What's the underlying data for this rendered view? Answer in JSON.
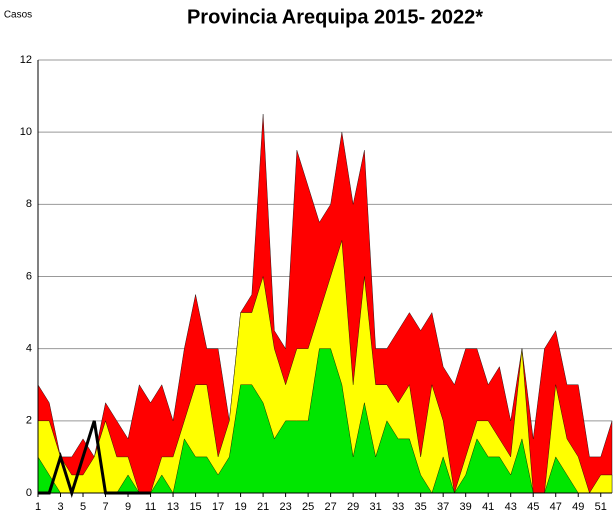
{
  "chart_data": {
    "type": "area",
    "title": "Provincia Arequipa  2015- 2022*",
    "y_label": "Casos",
    "x": [
      1,
      2,
      3,
      4,
      5,
      6,
      7,
      8,
      9,
      10,
      11,
      12,
      13,
      14,
      15,
      16,
      17,
      18,
      19,
      20,
      21,
      22,
      23,
      24,
      25,
      26,
      27,
      28,
      29,
      30,
      31,
      32,
      33,
      34,
      35,
      36,
      37,
      38,
      39,
      40,
      41,
      42,
      43,
      44,
      45,
      46,
      47,
      48,
      49,
      50,
      51,
      52
    ],
    "xlim": [
      1,
      52
    ],
    "xticks": [
      1,
      3,
      5,
      7,
      9,
      11,
      13,
      15,
      17,
      19,
      21,
      23,
      25,
      27,
      29,
      31,
      33,
      35,
      37,
      39,
      41,
      43,
      45,
      47,
      49,
      51
    ],
    "ylim": [
      0,
      12
    ],
    "yticks": [
      0,
      2,
      4,
      6,
      8,
      10,
      12
    ],
    "grid": true,
    "series": [
      {
        "color": "#ff0000",
        "values": [
          3,
          2.5,
          1,
          1,
          1.5,
          1,
          2.5,
          2,
          1.5,
          3,
          2.5,
          3,
          2,
          4,
          5.5,
          4,
          4,
          2,
          5,
          5.5,
          10.5,
          4.5,
          4,
          9.5,
          8.5,
          7.5,
          8,
          10,
          8,
          9.5,
          4,
          4,
          4.5,
          5,
          4.5,
          5,
          3.5,
          3,
          4,
          4,
          3,
          3.5,
          2,
          4,
          1.5,
          4,
          4.5,
          3,
          3,
          1,
          1,
          2
        ]
      },
      {
        "color": "#ffff00",
        "values": [
          2,
          2,
          1,
          0.5,
          0.5,
          1,
          2,
          1,
          1,
          0,
          0,
          1,
          1,
          2,
          3,
          3,
          1,
          2,
          5,
          5,
          6,
          4,
          3,
          4,
          4,
          5,
          6,
          7,
          3,
          6,
          3,
          3,
          2.5,
          3,
          1,
          3,
          2,
          0,
          1,
          2,
          2,
          1.5,
          1,
          4,
          0,
          0,
          3,
          1.5,
          1,
          0,
          0.5,
          0.5
        ]
      },
      {
        "color": "#00e600",
        "values": [
          1,
          0.5,
          0,
          0,
          0,
          0,
          0,
          0,
          0.5,
          0,
          0,
          0.5,
          0,
          1.5,
          1,
          1,
          0.5,
          1,
          3,
          3,
          2.5,
          1.5,
          2,
          2,
          2,
          4,
          4,
          3,
          1,
          2.5,
          1,
          2,
          1.5,
          1.5,
          0.5,
          0,
          1,
          0,
          0.5,
          1.5,
          1,
          1,
          0.5,
          1.5,
          0,
          0,
          1,
          0.5,
          0,
          0,
          0,
          0
        ]
      },
      {
        "type": "line",
        "color": "#000000",
        "values": [
          0,
          0,
          1,
          0,
          1,
          2,
          0,
          0,
          0,
          0,
          0,
          null,
          null,
          null,
          null,
          null,
          null,
          null,
          null,
          null,
          null,
          null,
          null,
          null,
          null,
          null,
          null,
          null,
          null,
          null,
          null,
          null,
          null,
          null,
          null,
          null,
          null,
          null,
          null,
          null,
          null,
          null,
          null,
          null,
          null,
          null,
          null,
          null,
          null,
          null,
          null,
          null
        ]
      }
    ]
  }
}
